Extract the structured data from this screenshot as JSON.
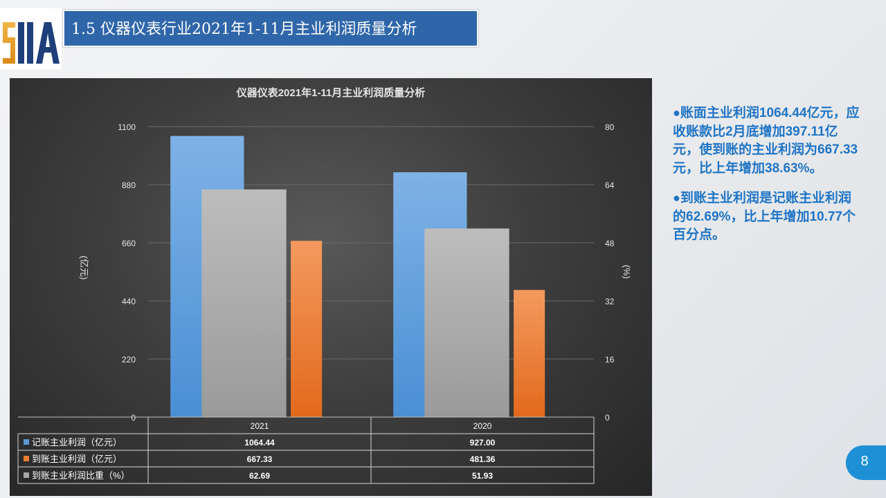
{
  "slide": {
    "title": "1.5 仪器仪表行业2021年1-11月主业利润质量分析",
    "logo_text": "SIIA",
    "page_number": "8"
  },
  "side_text": {
    "paragraphs": [
      "账面主业利润1064.44亿元，应收账款比2月底增加397.11亿元，使到账的主业利润为667.33元，比上年增加38.63%。",
      "到账主业利润是记账主业利润的62.69%，比上年增加10.77个百分点。"
    ],
    "bullet": "●"
  },
  "colors": {
    "title_bar": "#2f66a9",
    "accent_text": "#1f74c5",
    "page_badge": "#1e90d6",
    "series_blue": "#5b9bd5",
    "series_orange": "#ed7d31",
    "series_gray": "#a5a5a5"
  },
  "chart_data": {
    "type": "bar",
    "title": "仪器仪表2021年1-11月主业利润质量分析",
    "categories": [
      "2021",
      "2020"
    ],
    "ylabel": "(亿元)",
    "y2label": "(%)",
    "ylim": [
      0,
      1100
    ],
    "y2lim": [
      0,
      80
    ],
    "yticks": [
      "0",
      "220",
      "440",
      "660",
      "880",
      "1100"
    ],
    "y2ticks": [
      "0",
      "16",
      "32",
      "48",
      "64",
      "80"
    ],
    "grid": true,
    "legend": "data-table",
    "series": [
      {
        "name": "记账主业利润（亿元）",
        "values": [
          1064.44,
          927.0
        ],
        "display": [
          "1064.44",
          "927.00"
        ],
        "axis": "left",
        "color": "#5b9bd5"
      },
      {
        "name": "到账主业利润（亿元）",
        "values": [
          667.33,
          481.36
        ],
        "display": [
          "667.33",
          "481.36"
        ],
        "axis": "left",
        "color": "#ed7d31"
      },
      {
        "name": "到账主业利润比重（%）",
        "values": [
          62.69,
          51.93
        ],
        "display": [
          "62.69",
          "51.93"
        ],
        "axis": "right",
        "color": "#a5a5a5"
      }
    ]
  }
}
